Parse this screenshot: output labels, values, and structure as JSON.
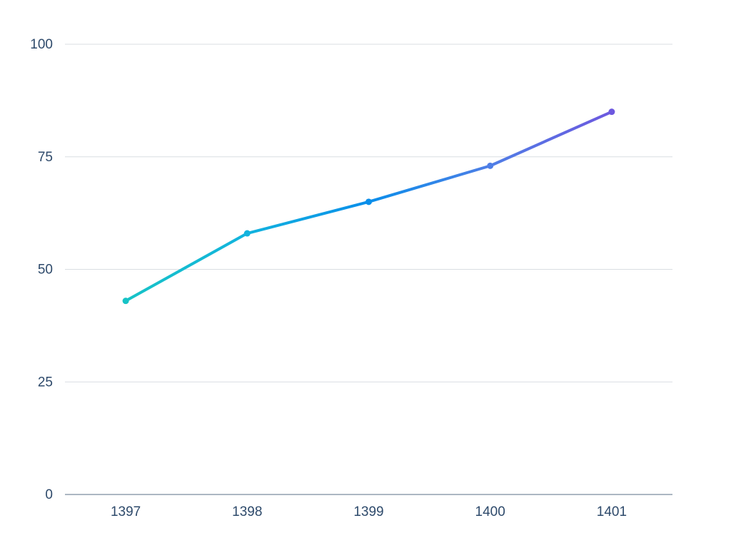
{
  "chart_data": {
    "type": "line",
    "categories": [
      "1397",
      "1398",
      "1399",
      "1400",
      "1401"
    ],
    "values": [
      43,
      58,
      65,
      73,
      85
    ],
    "point_colors": [
      "#17c3c6",
      "#12b3de",
      "#0a8eea",
      "#4f7ee6",
      "#6d58df"
    ],
    "ylim": [
      0,
      100
    ],
    "yticks": [
      0,
      25,
      50,
      75,
      100
    ],
    "grid": true
  }
}
